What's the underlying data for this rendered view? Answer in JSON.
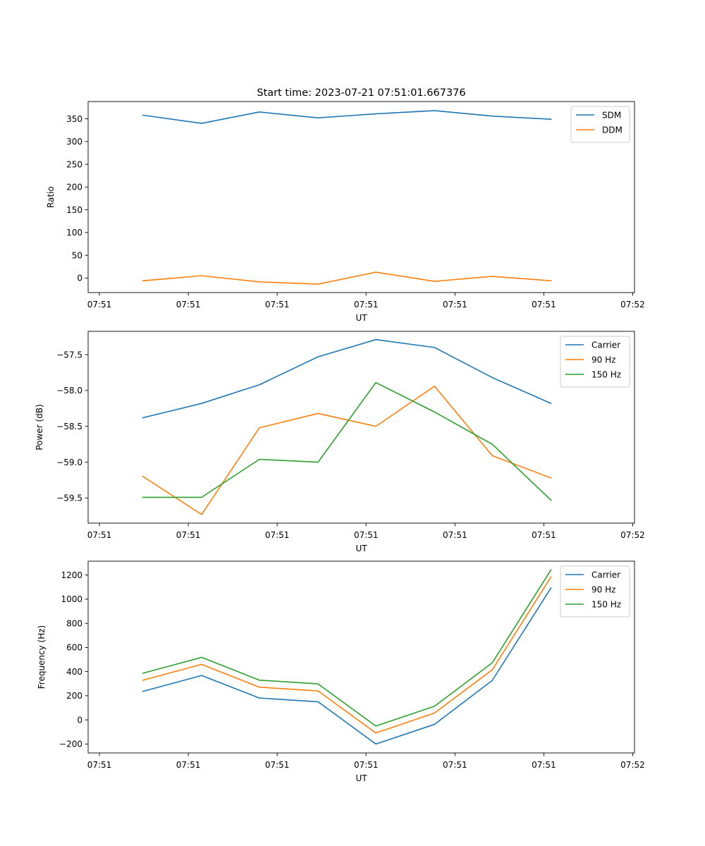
{
  "figure": {
    "suptitle": "Start time: 2023-07-21 07:51:01.667376"
  },
  "chart_data": [
    {
      "type": "line",
      "title": "Start time: 2023-07-21 07:51:01.667376",
      "xlabel": "UT",
      "ylabel": "Ratio",
      "x_units": "seconds after 07:51:00",
      "x": [
        4.9,
        11.5,
        18.0,
        24.6,
        31.1,
        37.7,
        44.2,
        50.8
      ],
      "xlim": [
        -1.27,
        60.2
      ],
      "xticks": [
        0,
        10,
        20,
        30,
        40,
        50,
        60
      ],
      "xtick_labels": [
        "07:51",
        "07:51",
        "07:51",
        "07:51",
        "07:51",
        "07:51",
        "07:52"
      ],
      "ylim": [
        -32,
        388
      ],
      "yticks": [
        0,
        50,
        100,
        150,
        200,
        250,
        300,
        350
      ],
      "ytick_labels": [
        "0",
        "50",
        "100",
        "150",
        "200",
        "250",
        "300",
        "350"
      ],
      "grid": false,
      "legend": "top-right",
      "series": [
        {
          "name": "SDM",
          "color": "#1f77b4",
          "values": [
            358,
            340,
            365,
            352,
            361,
            368,
            356,
            349
          ]
        },
        {
          "name": "DDM",
          "color": "#ff7f0e",
          "values": [
            -6,
            5,
            -8.5,
            -13.5,
            12.8,
            -7.3,
            3.6,
            -6
          ]
        }
      ]
    },
    {
      "type": "line",
      "title": "",
      "xlabel": "UT",
      "ylabel": "Power (dB)",
      "x_units": "seconds after 07:51:00",
      "x": [
        4.9,
        11.5,
        18.0,
        24.6,
        31.1,
        37.7,
        44.2,
        50.8
      ],
      "xlim": [
        -1.27,
        60.2
      ],
      "xticks": [
        0,
        10,
        20,
        30,
        40,
        50,
        60
      ],
      "xtick_labels": [
        "07:51",
        "07:51",
        "07:51",
        "07:51",
        "07:51",
        "07:51",
        "07:52"
      ],
      "ylim": [
        -59.85,
        -57.175
      ],
      "yticks": [
        -59.5,
        -59.0,
        -58.5,
        -58.0,
        -57.5
      ],
      "ytick_labels": [
        "−59.5",
        "−59.0",
        "−58.5",
        "−58.0",
        "−57.5"
      ],
      "grid": false,
      "legend": "top-right",
      "series": [
        {
          "name": "Carrier",
          "color": "#1f77b4",
          "values": [
            -58.38,
            -58.18,
            -57.92,
            -57.53,
            -57.29,
            -57.4,
            -57.82,
            -58.18
          ]
        },
        {
          "name": "90 Hz",
          "color": "#ff7f0e",
          "values": [
            -59.2,
            -59.73,
            -58.52,
            -58.32,
            -58.5,
            -57.94,
            -58.91,
            -59.22
          ]
        },
        {
          "name": "150 Hz",
          "color": "#2ca02c",
          "values": [
            -59.49,
            -59.49,
            -58.96,
            -59.0,
            -57.89,
            -58.3,
            -58.75,
            -59.53
          ]
        }
      ]
    },
    {
      "type": "line",
      "title": "",
      "xlabel": "UT",
      "ylabel": "Frequency (Hz)",
      "x_units": "seconds after 07:51:00",
      "x": [
        4.9,
        11.5,
        18.0,
        24.6,
        31.1,
        37.7,
        44.2,
        50.8
      ],
      "xlim": [
        -1.27,
        60.2
      ],
      "xticks": [
        0,
        10,
        20,
        30,
        40,
        50,
        60
      ],
      "xtick_labels": [
        "07:51",
        "07:51",
        "07:51",
        "07:51",
        "07:51",
        "07:51",
        "07:52"
      ],
      "ylim": [
        -274,
        1315
      ],
      "yticks": [
        -200,
        0,
        200,
        400,
        600,
        800,
        1000,
        1200
      ],
      "ytick_labels": [
        "−200",
        "0",
        "200",
        "400",
        "600",
        "800",
        "1000",
        "1200"
      ],
      "grid": false,
      "legend": "top-right",
      "series": [
        {
          "name": "Carrier",
          "color": "#1f77b4",
          "values": [
            236,
            368,
            181,
            150,
            -200,
            -37,
            327,
            1093
          ]
        },
        {
          "name": "90 Hz",
          "color": "#ff7f0e",
          "values": [
            329,
            460,
            271,
            240,
            -109,
            57,
            415,
            1184
          ]
        },
        {
          "name": "150 Hz",
          "color": "#2ca02c",
          "values": [
            387,
            518,
            329,
            298,
            -51,
            113,
            473,
            1243
          ]
        }
      ]
    }
  ]
}
